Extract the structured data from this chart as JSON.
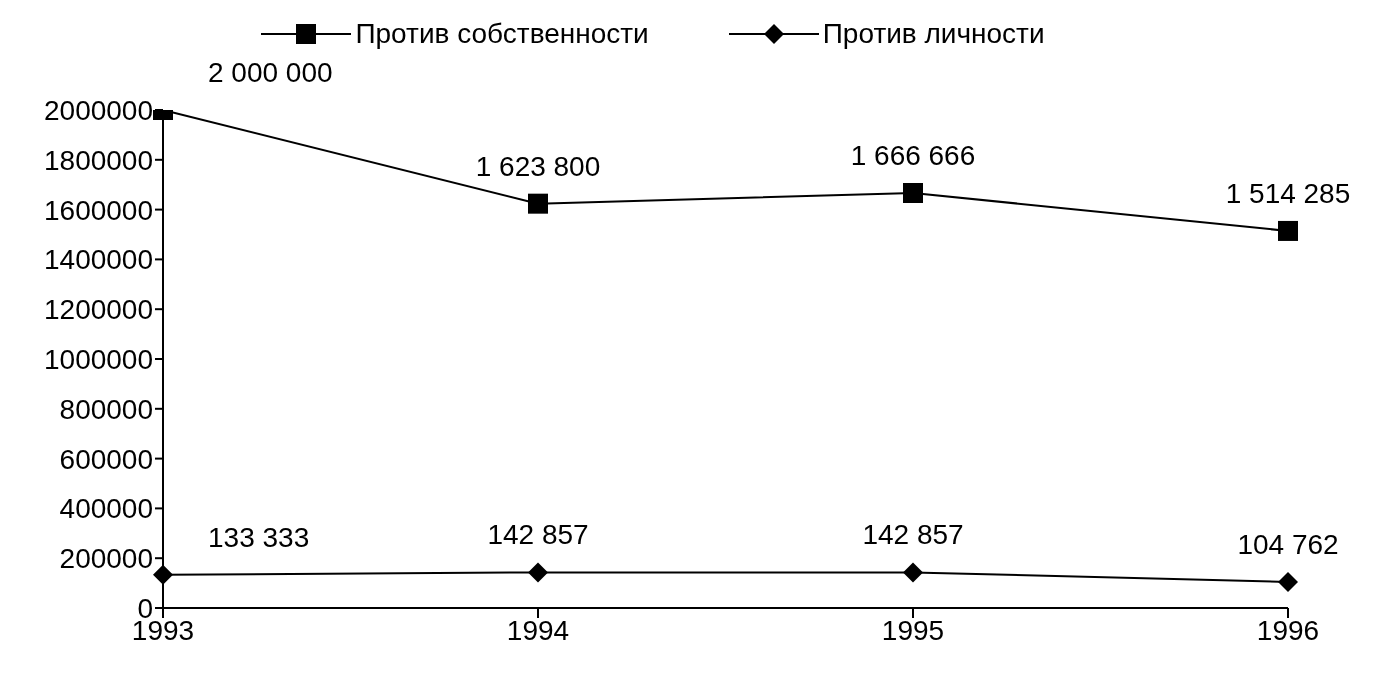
{
  "chart_data": {
    "type": "line",
    "categories": [
      "1993",
      "1994",
      "1995",
      "1996"
    ],
    "series": [
      {
        "name": "Против собственности",
        "color": "#000000",
        "marker": "square",
        "values": [
          2000000,
          1623800,
          1666666,
          1514285
        ],
        "value_labels": [
          "2 000 000",
          "1 623 800",
          "1 666 666",
          "1 514 285"
        ]
      },
      {
        "name": "Против личности",
        "color": "#000000",
        "marker": "diamond",
        "values": [
          133333,
          142857,
          142857,
          104762
        ],
        "value_labels": [
          "133 333",
          "142 857",
          "142 857",
          "104 762"
        ]
      }
    ],
    "ylim": [
      0,
      2000000
    ],
    "yticks": [
      0,
      200000,
      400000,
      600000,
      800000,
      1000000,
      1200000,
      1400000,
      1600000,
      1800000,
      2000000
    ],
    "grid": false,
    "legend": "top"
  }
}
